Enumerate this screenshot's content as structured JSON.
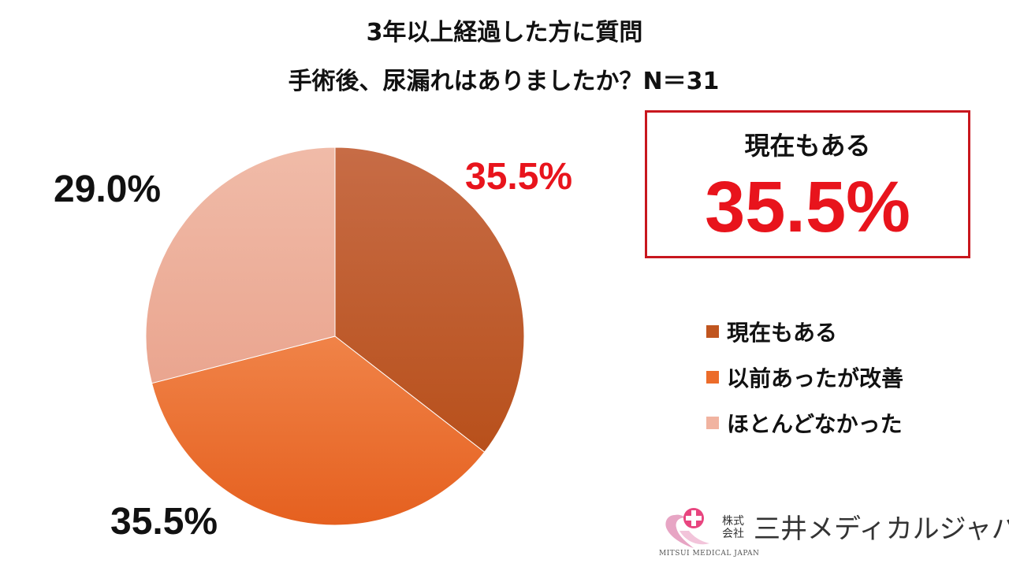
{
  "chart_data": {
    "type": "pie",
    "title": "3年以上経過した方に質問",
    "subtitle": "手術後、尿漏れはありましたか？N＝31",
    "categories": [
      "現在もある",
      "以前あったが改善",
      "ほとんどなかった"
    ],
    "values": [
      35.5,
      35.5,
      29.0
    ],
    "data_labels": [
      "35.5%",
      "35.5%",
      "29.0%"
    ],
    "colors": [
      "#c0551f",
      "#ec6c2a",
      "#f1b3a0"
    ],
    "legend_position": "right"
  },
  "highlight": {
    "label": "現在もある",
    "value": "35.5%",
    "color": "#e8141c"
  },
  "logo": {
    "company_type": "株式会社",
    "name": "三井メディカルジャパン",
    "tagline": "MITSUI MEDICAL JAPAN",
    "icon": "heart-cross-logo-icon"
  }
}
